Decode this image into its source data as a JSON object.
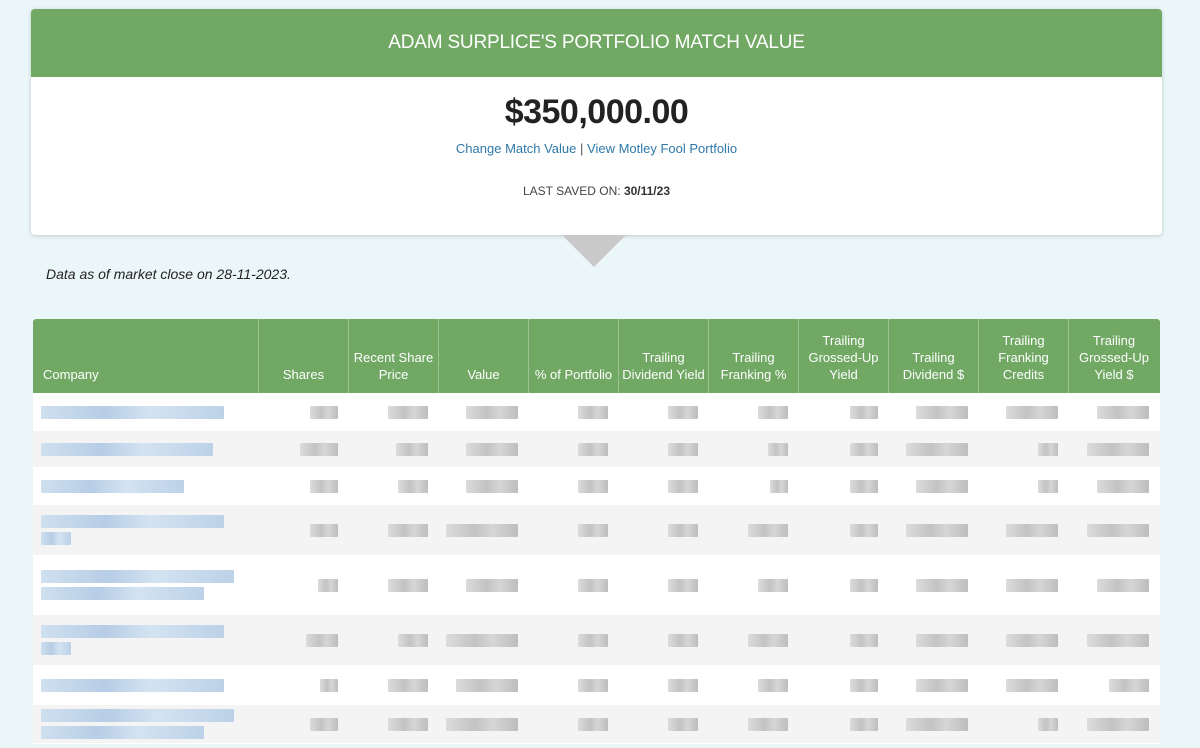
{
  "header": {
    "title": "ADAM SURPLICE'S PORTFOLIO MATCH VALUE",
    "amount": "$350,000.00",
    "change_link": "Change Match Value",
    "separator": "|",
    "view_link": "View Motley Fool Portfolio",
    "last_saved_label": "LAST SAVED ON:",
    "last_saved_date": "30/11/23"
  },
  "data_note": "Data as of market close on 28-11-2023.",
  "table": {
    "columns": [
      "Company",
      "Shares",
      "Recent Share Price",
      "Value",
      "% of Portfolio",
      "Trailing Dividend Yield",
      "Trailing Franking %",
      "Trailing Grossed-Up Yield",
      "Trailing Dividend $",
      "Trailing Franking Credits",
      "Trailing Grossed-Up Yield $"
    ],
    "row_count": 8
  },
  "colors": {
    "header_green": "#70a864",
    "link_blue": "#2f78a8",
    "page_background": "#eaf6f8"
  }
}
